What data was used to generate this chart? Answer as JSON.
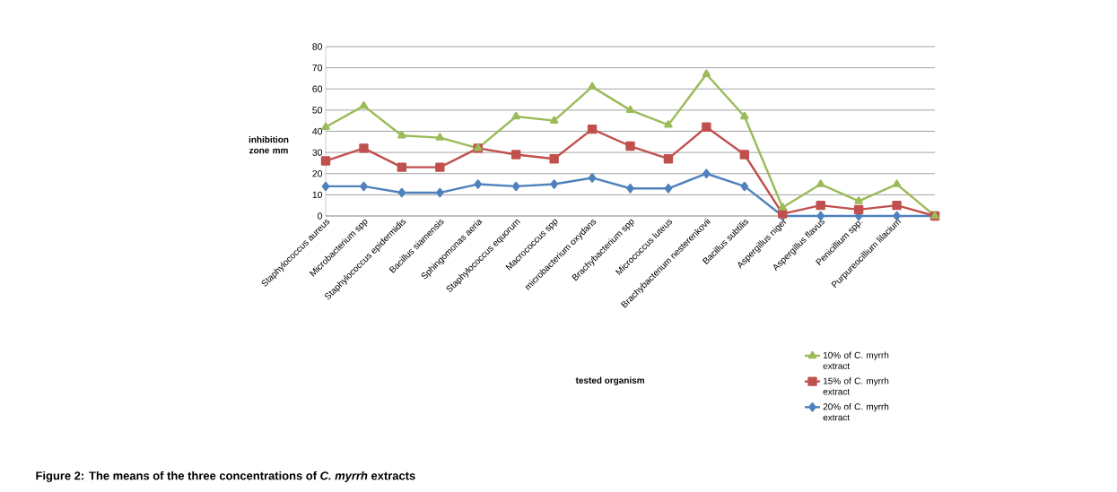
{
  "chart_data": {
    "type": "line",
    "title": "Figure 2:  The means of the three concentrations of *C. myrrh* extracts",
    "annotations": [
      "tested organism"
    ],
    "ylabel": "inhibition zone mm",
    "categories": [
      "Staphylococcus aureus",
      "Microbacterium  spp",
      "Staphylococcus epidermidis",
      "Bacillus siamensis",
      "Sphingomonas aeria",
      "Staphylococcus equorum",
      "Macrococcus spp",
      "microbacterium oxydans",
      "Brachybacterium spp",
      "Micrococcus luteus",
      "Brachybacterium nesterenkovii",
      "Bacillus subtilis",
      "Aspergillus niger",
      "Aspergillus flavus",
      "Penicillium spp.",
      "Purpureocillium lilacium",
      null
    ],
    "series": [
      {
        "name": "10% of C. myrrh extract",
        "color": "#9bbb59",
        "marker": "triangle",
        "values": [
          42,
          52,
          38,
          37,
          32,
          47,
          45,
          61,
          50,
          43,
          67,
          47,
          4,
          15,
          7,
          15,
          0
        ]
      },
      {
        "name": "15% of C. myrrh extract",
        "color": "#c0504d",
        "marker": "square",
        "values": [
          26,
          32,
          23,
          23,
          32,
          29,
          27,
          41,
          33,
          27,
          42,
          29,
          1,
          5,
          3,
          5,
          0
        ]
      },
      {
        "name": "20% of C. myrrh extract",
        "color": "#4f81bd",
        "marker": "diamond",
        "values": [
          14,
          14,
          11,
          11,
          15,
          14,
          15,
          18,
          13,
          13,
          20,
          14,
          0,
          0,
          0,
          0,
          0
        ]
      }
    ],
    "ylim": [
      0,
      80
    ],
    "yticks": [
      0,
      10,
      20,
      30,
      40,
      50,
      60,
      70,
      80
    ],
    "grid": "y",
    "legend": "bottom right",
    "line_style": "solid"
  }
}
